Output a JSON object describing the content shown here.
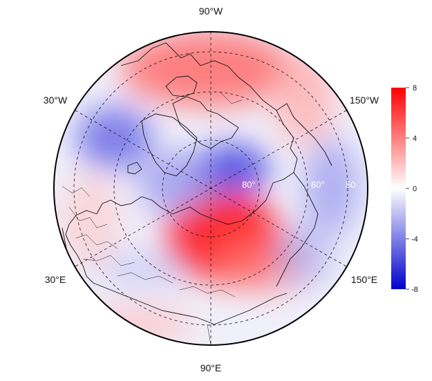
{
  "map": {
    "projection": "north polar stereographic",
    "longitude_labels": {
      "top": "90°W",
      "upper_left": "30°W",
      "upper_right": "150°W",
      "lower_left": "30°E",
      "lower_right": "150°E",
      "bottom": "90°E"
    },
    "latitude_labels": [
      "80°",
      "60°",
      "50"
    ],
    "field": {
      "description_colors": {
        "positive": "#ff0000",
        "negative": "#0000cc",
        "zero": "#ffffff"
      },
      "anomalies": [
        {
          "region": "north-america-arctic",
          "sign": "positive",
          "peak": 5
        },
        {
          "region": "eurasia-siberia",
          "sign": "positive",
          "peak": 7
        },
        {
          "region": "central-arctic",
          "sign": "negative",
          "peak": -4
        },
        {
          "region": "north-atlantic",
          "sign": "negative",
          "peak": -3
        },
        {
          "region": "north-pacific",
          "sign": "negative",
          "peak": -2
        }
      ]
    }
  },
  "colorbar": {
    "ticks": [
      "8",
      "4",
      "0",
      "-4",
      "-8"
    ],
    "min": -8,
    "max": 8,
    "colors": [
      "#0000cc",
      "#ffffff",
      "#ff0000"
    ]
  }
}
